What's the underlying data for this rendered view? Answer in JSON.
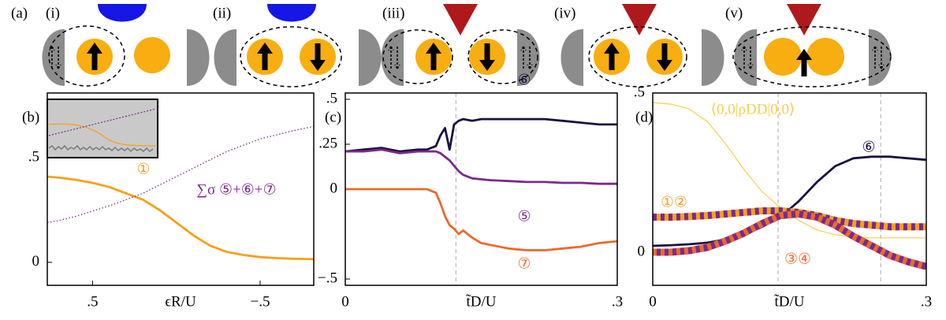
{
  "diagram": {
    "panel_label": "(a)",
    "labels": [
      "(i)",
      "(ii)",
      "(iii)",
      "(iv)",
      "(v)"
    ]
  },
  "chart_data": [
    {
      "type": "line",
      "panel_label": "(b)",
      "x_label": "ϵR/U",
      "xlim": [
        0.77,
        -0.82
      ],
      "ylim": [
        -0.11,
        0.81
      ],
      "xticks": [
        {
          "value": 0.5,
          "label": ".5"
        },
        {
          "value": -0.5,
          "label": "−.5"
        }
      ],
      "yticks": [
        0,
        {
          "value": 0.5,
          "label": ".5"
        }
      ],
      "x": [
        0.77,
        0.7,
        0.6,
        0.5,
        0.4,
        0.3,
        0.2,
        0.1,
        0,
        -0.1,
        -0.2,
        -0.3,
        -0.4,
        -0.5,
        -0.6,
        -0.7,
        -0.82
      ],
      "series": [
        {
          "name": "①",
          "color": "#f6a01a",
          "style": "solid",
          "values": [
            0.41,
            0.405,
            0.395,
            0.38,
            0.36,
            0.33,
            0.3,
            0.25,
            0.19,
            0.13,
            0.08,
            0.05,
            0.035,
            0.025,
            0.02,
            0.017,
            0.015
          ]
        },
        {
          "name": "∑σ ⑤+⑥+⑦",
          "color": "#7b2a8a",
          "style": "dotted",
          "values": [
            0.19,
            0.2,
            0.22,
            0.245,
            0.27,
            0.3,
            0.33,
            0.37,
            0.41,
            0.45,
            0.49,
            0.53,
            0.56,
            0.59,
            0.61,
            0.63,
            0.65
          ]
        }
      ]
    },
    {
      "type": "line",
      "panel_label": "(c)",
      "x_label": "t̃D/U",
      "xlim": [
        0,
        0.3
      ],
      "ylim": [
        -0.535,
        0.535
      ],
      "xticks": [
        0,
        {
          "value": 0.3,
          "label": ".3"
        }
      ],
      "yticks": [
        {
          "value": -0.5,
          "label": "−.5"
        },
        0,
        {
          "value": 0.25,
          "label": ".25"
        },
        {
          "value": 0.5,
          "label": ".5"
        }
      ],
      "vlines": [
        0.122
      ],
      "x": [
        0,
        0.02,
        0.04,
        0.06,
        0.08,
        0.09,
        0.1,
        0.105,
        0.11,
        0.115,
        0.12,
        0.125,
        0.13,
        0.14,
        0.15,
        0.16,
        0.18,
        0.2,
        0.22,
        0.24,
        0.26,
        0.28,
        0.3
      ],
      "series": [
        {
          "name": "⑥",
          "color": "#1c1040",
          "style": "solid",
          "values": [
            0.21,
            0.22,
            0.23,
            0.21,
            0.22,
            0.22,
            0.24,
            0.3,
            0.34,
            0.22,
            0.36,
            0.38,
            0.39,
            0.38,
            0.39,
            0.39,
            0.39,
            0.39,
            0.39,
            0.38,
            0.37,
            0.36,
            0.36
          ]
        },
        {
          "name": "⑤",
          "color": "#7b2a8a",
          "style": "solid",
          "values": [
            0.21,
            0.21,
            0.22,
            0.2,
            0.21,
            0.21,
            0.21,
            0.2,
            0.18,
            0.16,
            0.13,
            0.1,
            0.08,
            0.06,
            0.055,
            0.05,
            0.045,
            0.04,
            0.04,
            0.035,
            0.035,
            0.03,
            0.03
          ]
        },
        {
          "name": "⑦",
          "color": "#ea6a2c",
          "style": "solid",
          "values": [
            0,
            0,
            0,
            0,
            0,
            0,
            -0.02,
            -0.08,
            -0.15,
            -0.2,
            -0.22,
            -0.25,
            -0.23,
            -0.27,
            -0.3,
            -0.31,
            -0.33,
            -0.34,
            -0.34,
            -0.33,
            -0.32,
            -0.3,
            -0.29
          ]
        }
      ]
    },
    {
      "type": "line",
      "panel_label": "(d)",
      "x_label": "t̃D/U",
      "xlim": [
        0,
        0.3
      ],
      "ylim": [
        -0.104,
        0.5
      ],
      "xticks": [
        0,
        {
          "value": 0.3,
          "label": ".3"
        }
      ],
      "yticks": [
        0,
        {
          "value": 0.5,
          "label": ".5"
        }
      ],
      "vlines": [
        0.1375,
        0.25
      ],
      "x": [
        0,
        0.02,
        0.04,
        0.06,
        0.08,
        0.1,
        0.12,
        0.14,
        0.16,
        0.18,
        0.2,
        0.22,
        0.24,
        0.26,
        0.28,
        0.3
      ],
      "series": [
        {
          "name": "⟨0,0|ρDD|0,0⟩",
          "color": "#f7cf4a",
          "style": "thin",
          "values": [
            0.47,
            0.465,
            0.45,
            0.41,
            0.34,
            0.26,
            0.19,
            0.14,
            0.1,
            0.07,
            0.055,
            0.048,
            0.045,
            0.045,
            0.045,
            0.045
          ]
        },
        {
          "name": "⑥",
          "color": "#1c1040",
          "style": "solid",
          "values": [
            0.02,
            0.022,
            0.025,
            0.03,
            0.04,
            0.055,
            0.08,
            0.11,
            0.16,
            0.22,
            0.27,
            0.295,
            0.3,
            0.3,
            0.295,
            0.29
          ]
        },
        {
          "name": "①②",
          "color": "#f6a01a",
          "stripe_color": "#7b2a8a",
          "style": "striped",
          "values": [
            0.11,
            0.11,
            0.112,
            0.115,
            0.12,
            0.125,
            0.13,
            0.13,
            0.125,
            0.115,
            0.1,
            0.09,
            0.085,
            0.08,
            0.08,
            0.08
          ]
        },
        {
          "name": "③④",
          "color": "#7b2a8a",
          "stripe_color": "#ea6a2c",
          "style": "striped",
          "values": [
            0,
            0,
            0.005,
            0.015,
            0.035,
            0.06,
            0.09,
            0.115,
            0.12,
            0.11,
            0.085,
            0.05,
            0.02,
            -0.01,
            -0.03,
            -0.045
          ]
        }
      ]
    }
  ]
}
